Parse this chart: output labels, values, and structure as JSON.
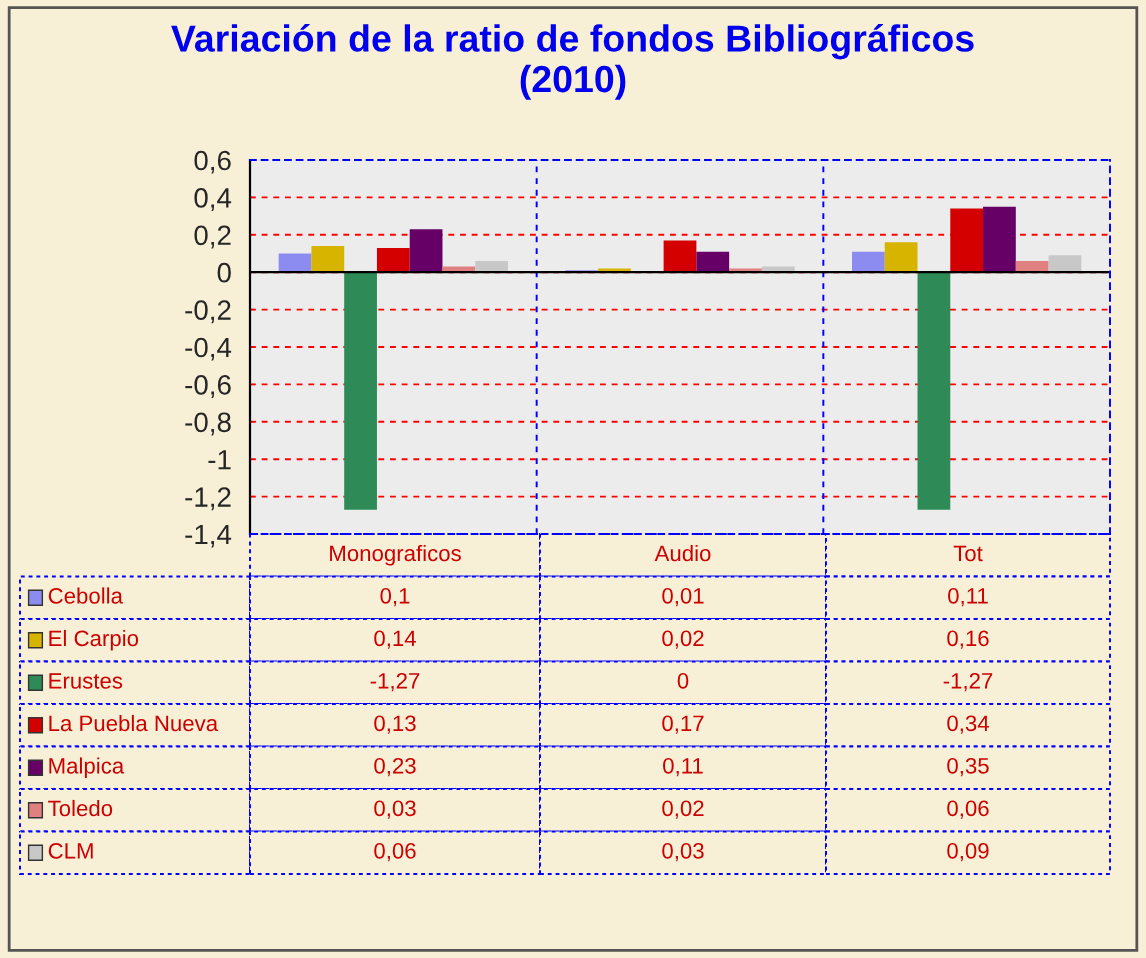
{
  "chart_data": {
    "type": "bar",
    "title": "Variación de la ratio de fondos Bibliográficos\n(2010)",
    "categories": [
      "Monograficos",
      "Audio",
      "Tot"
    ],
    "series": [
      {
        "name": "Cebolla",
        "color": "#8c8cf0",
        "values": [
          0.1,
          0.01,
          0.11
        ],
        "value_labels": [
          "0,1",
          "0,01",
          "0,11"
        ]
      },
      {
        "name": "El Carpio",
        "color": "#d6b400",
        "values": [
          0.14,
          0.02,
          0.16
        ],
        "value_labels": [
          "0,14",
          "0,02",
          "0,16"
        ]
      },
      {
        "name": "Erustes",
        "color": "#2e8b57",
        "values": [
          -1.27,
          0,
          -1.27
        ],
        "value_labels": [
          "-1,27",
          "0",
          "-1,27"
        ]
      },
      {
        "name": "La Puebla Nueva",
        "color": "#d40000",
        "values": [
          0.13,
          0.17,
          0.34
        ],
        "value_labels": [
          "0,13",
          "0,17",
          "0,34"
        ]
      },
      {
        "name": "Malpica",
        "color": "#660066",
        "values": [
          0.23,
          0.11,
          0.35
        ],
        "value_labels": [
          "0,23",
          "0,11",
          "0,35"
        ]
      },
      {
        "name": "Toledo",
        "color": "#e08080",
        "values": [
          0.03,
          0.02,
          0.06
        ],
        "value_labels": [
          "0,03",
          "0,02",
          "0,06"
        ]
      },
      {
        "name": "CLM",
        "color": "#c8c8c8",
        "values": [
          0.06,
          0.03,
          0.09
        ],
        "value_labels": [
          "0,06",
          "0,03",
          "0,09"
        ]
      }
    ],
    "ylim": [
      -1.4,
      0.6
    ],
    "yticks": [
      {
        "value": -1.4,
        "label": "-1,4"
      },
      {
        "value": -1.2,
        "label": "-1,2"
      },
      {
        "value": -1,
        "label": "-1"
      },
      {
        "value": -0.8,
        "label": "-0,8"
      },
      {
        "value": -0.6,
        "label": "-0,6"
      },
      {
        "value": -0.4,
        "label": "-0,4"
      },
      {
        "value": -0.2,
        "label": "-0,2"
      },
      {
        "value": 0,
        "label": "0"
      },
      {
        "value": 0.2,
        "label": "0,2"
      },
      {
        "value": 0.4,
        "label": "0,4"
      },
      {
        "value": 0.6,
        "label": "0,6"
      }
    ],
    "grid": true,
    "tick_labels": "y",
    "legend": "bottom"
  }
}
